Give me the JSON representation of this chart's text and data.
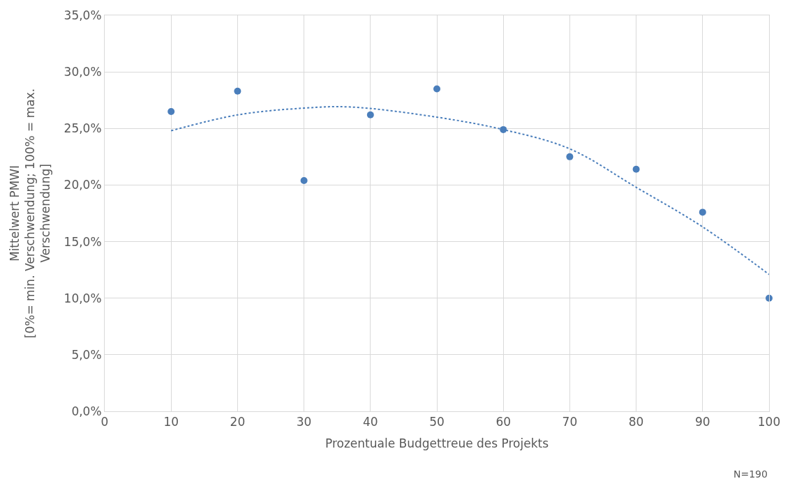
{
  "chart_data": {
    "type": "scatter",
    "xlabel": "Prozentuale Budgettreue des Projekts",
    "ylabel": "Mittelwert PMWI\n[0%= min. Verschwendung; 100% = max.\nVerschwendung]",
    "x": [
      10,
      20,
      30,
      40,
      50,
      60,
      70,
      80,
      90,
      100
    ],
    "series": [
      {
        "color": "#4a7ebb",
        "values": [
          26.5,
          28.3,
          20.4,
          26.2,
          28.5,
          24.9,
          22.5,
          21.4,
          17.6,
          10.0
        ],
        "marker": "circle"
      },
      {
        "type": "line",
        "color": "#4a7ebb",
        "line_style": "dotted",
        "marker": "none",
        "x": [
          10,
          20,
          30,
          37,
          50,
          60,
          70,
          80,
          90,
          100
        ],
        "values": [
          24.8,
          26.2,
          26.8,
          26.9,
          26.0,
          24.9,
          23.2,
          19.8,
          16.3,
          12.1
        ]
      }
    ],
    "xlim": [
      0,
      100
    ],
    "xticks": [
      0,
      10,
      20,
      30,
      40,
      50,
      60,
      70,
      80,
      90,
      100
    ],
    "ylim": [
      0,
      35
    ],
    "yticks": [
      {
        "value": 0,
        "label": "0,0%"
      },
      {
        "value": 5,
        "label": "5,0%"
      },
      {
        "value": 10,
        "label": "10,0%"
      },
      {
        "value": 15,
        "label": "15,0%"
      },
      {
        "value": 20,
        "label": "20,0%"
      },
      {
        "value": 25,
        "label": "25,0%"
      },
      {
        "value": 30,
        "label": "30,0%"
      },
      {
        "value": 35,
        "label": "35,0%"
      }
    ],
    "grid": true,
    "annotations": [
      "N=190"
    ]
  }
}
